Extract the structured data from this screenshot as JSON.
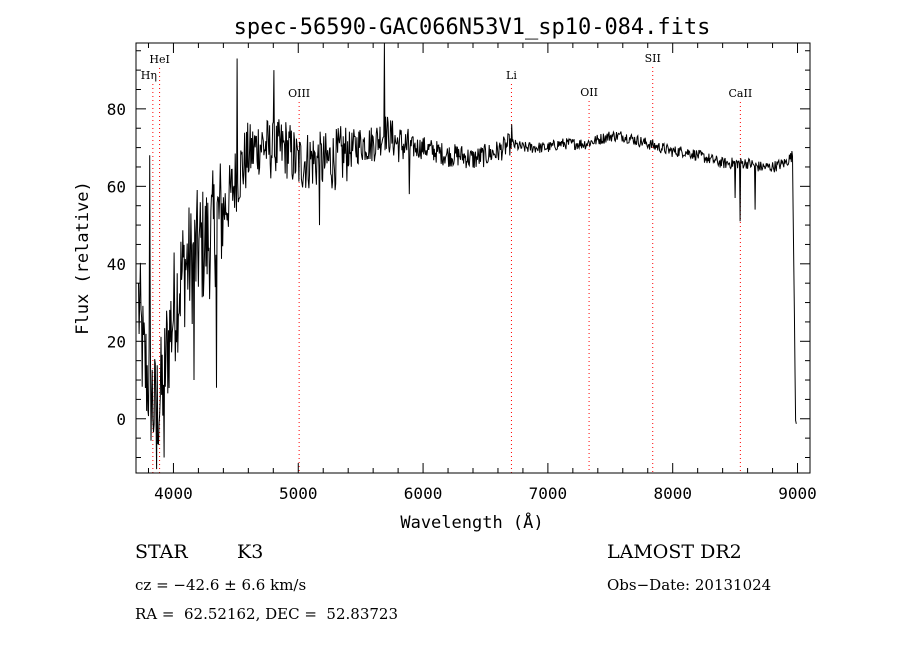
{
  "chart_data": {
    "type": "line",
    "title": "spec-56590-GAC066N53V1_sp10-084.fits",
    "xlabel": "Wavelength (Å)",
    "ylabel": "Flux (relative)",
    "xlim": [
      3700,
      9100
    ],
    "ylim": [
      -14,
      97
    ],
    "xticks": [
      4000,
      5000,
      6000,
      7000,
      8000,
      9000
    ],
    "yticks": [
      0,
      20,
      40,
      60,
      80
    ],
    "grid": false,
    "line_color": "#000000",
    "marker_line_color": "#ff0000",
    "lines": [
      {
        "label": "HeI",
        "x": 3889
      },
      {
        "label": "Hη",
        "x": 3835
      },
      {
        "label": "OIII",
        "x": 5007
      },
      {
        "label": "Li",
        "x": 6708
      },
      {
        "label": "OII",
        "x": 7330
      },
      {
        "label": "SII",
        "x": 7840
      },
      {
        "label": "CaII",
        "x": 8542
      }
    ],
    "spectrum_anchors": {
      "x": [
        3720,
        3760,
        3800,
        3850,
        3900,
        3950,
        4000,
        4050,
        4100,
        4150,
        4200,
        4250,
        4300,
        4350,
        4400,
        4450,
        4500,
        4600,
        4700,
        4800,
        4900,
        5000,
        5100,
        5200,
        5300,
        5400,
        5500,
        5600,
        5700,
        5800,
        5900,
        6000,
        6100,
        6200,
        6300,
        6400,
        6500,
        6600,
        6700,
        6800,
        6900,
        7000,
        7100,
        7200,
        7300,
        7400,
        7500,
        7600,
        7700,
        7800,
        7900,
        8000,
        8100,
        8200,
        8300,
        8400,
        8500,
        8600,
        8700,
        8800,
        8900,
        8960,
        8985
      ],
      "y": [
        30,
        15,
        10,
        2,
        6,
        18,
        28,
        35,
        40,
        40,
        44,
        45,
        47,
        51,
        54,
        57,
        62,
        68,
        71,
        69,
        70,
        66,
        67,
        66,
        67,
        69,
        71,
        71,
        74,
        71,
        70,
        70,
        69,
        68,
        68,
        67,
        68,
        69,
        71,
        70,
        70,
        70,
        71,
        71,
        71,
        72,
        73,
        73,
        72,
        71,
        70,
        69,
        69,
        68,
        67,
        66,
        66,
        66,
        65,
        65,
        66,
        68,
        0
      ]
    },
    "spectrum_noise": {
      "start": [
        3700,
        4400,
        4600,
        5400,
        5900,
        6700
      ],
      "amplitude": [
        16,
        9,
        8,
        5,
        3,
        1.5
      ]
    },
    "spectrum_spikes": [
      {
        "x": 5692,
        "y": 97
      },
      {
        "x": 4510,
        "y": 93
      },
      {
        "x": 4805,
        "y": 90
      },
      {
        "x": 3812,
        "y": 68
      },
      {
        "x": 3865,
        "y": -13
      },
      {
        "x": 3925,
        "y": -10
      },
      {
        "x": 4165,
        "y": 10
      },
      {
        "x": 4345,
        "y": 8
      },
      {
        "x": 8542,
        "y": 51
      },
      {
        "x": 8662,
        "y": 54
      },
      {
        "x": 8498,
        "y": 57
      },
      {
        "x": 6710,
        "y": 76
      },
      {
        "x": 5172,
        "y": 50
      },
      {
        "x": 5890,
        "y": 58
      }
    ]
  },
  "info": {
    "class": "STAR",
    "subclass": "K3",
    "survey": "LAMOST DR2",
    "cz": "cz = −42.6 ± 6.6 km/s",
    "obs_date": "Obs−Date: 20131024",
    "radec": "RA =  62.52162, DEC =  52.83723"
  }
}
